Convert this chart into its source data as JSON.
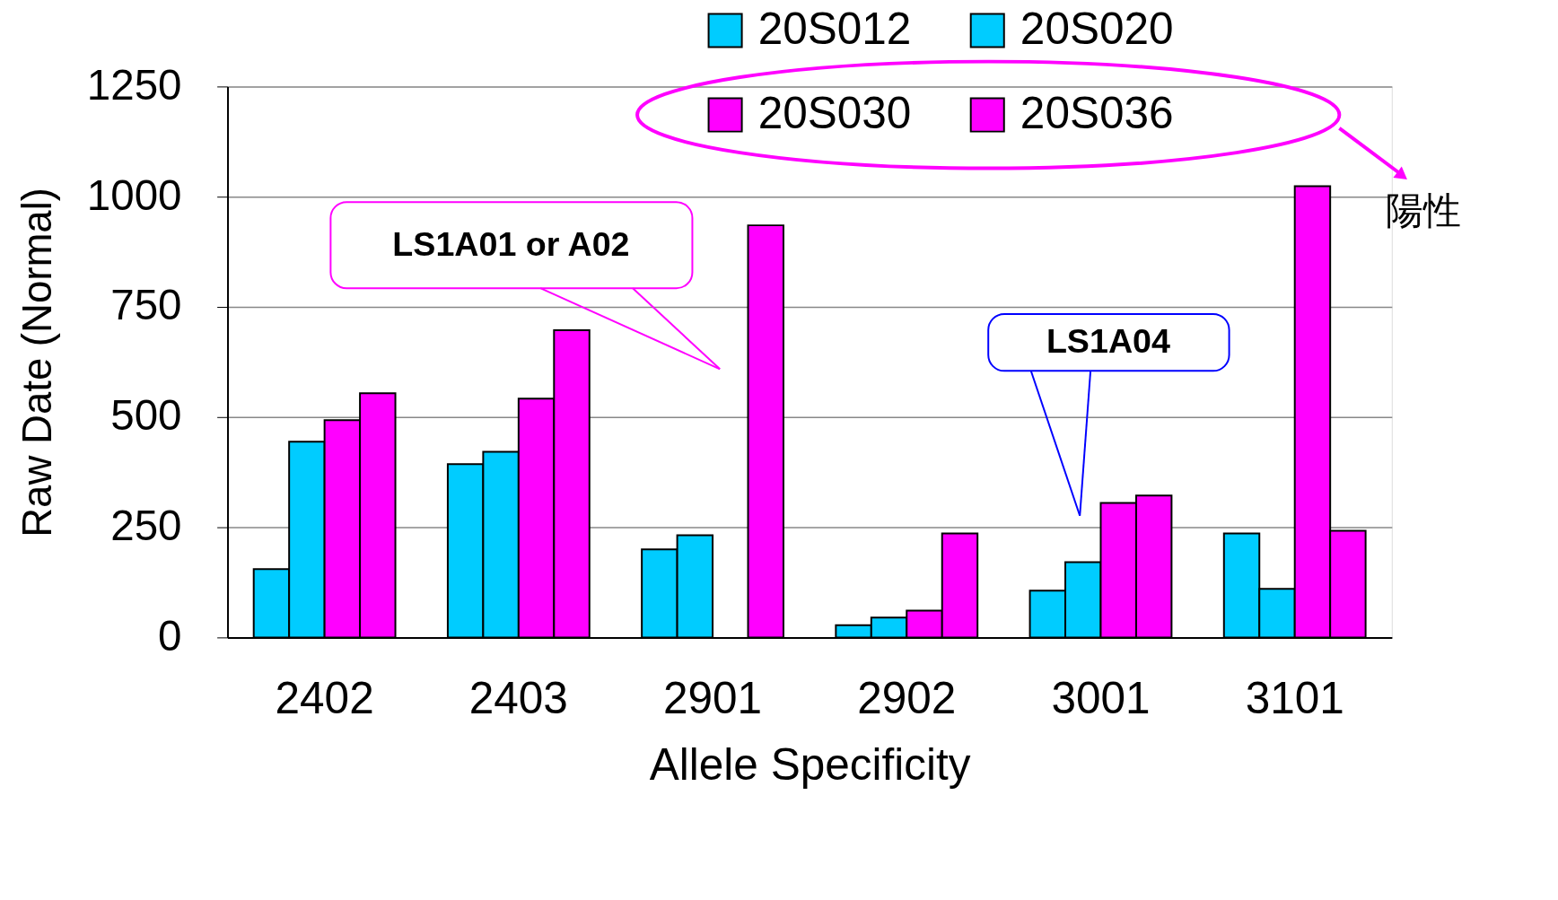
{
  "chart_data": {
    "type": "bar",
    "xlabel": "Allele Specificity",
    "ylabel": "Raw Date (Normal)",
    "categories": [
      "2402",
      "2403",
      "2901",
      "2902",
      "3001",
      "3101"
    ],
    "series": [
      {
        "name": "20S012",
        "color": "#00ccff",
        "values": [
          155,
          393,
          200,
          28,
          106,
          236
        ]
      },
      {
        "name": "20S020",
        "color": "#00ccff",
        "values": [
          444,
          421,
          232,
          45,
          171,
          110
        ]
      },
      {
        "name": "20S030",
        "color": "#ff00ff",
        "values": [
          493,
          542,
          null,
          61,
          305,
          1024
        ]
      },
      {
        "name": "20S036",
        "color": "#ff00ff",
        "values": [
          554,
          697,
          935,
          236,
          322,
          242
        ]
      }
    ],
    "ylim": [
      0,
      1250
    ],
    "yticks": [
      0,
      250,
      500,
      750,
      {
        "value": 1000,
        "label": "1000"
      },
      {
        "value": 1250,
        "label": "1250"
      }
    ],
    "grid": "y",
    "legend": "top right",
    "annotations": [
      "LS1A01 or A02",
      "LS1A04",
      "陽性"
    ]
  }
}
